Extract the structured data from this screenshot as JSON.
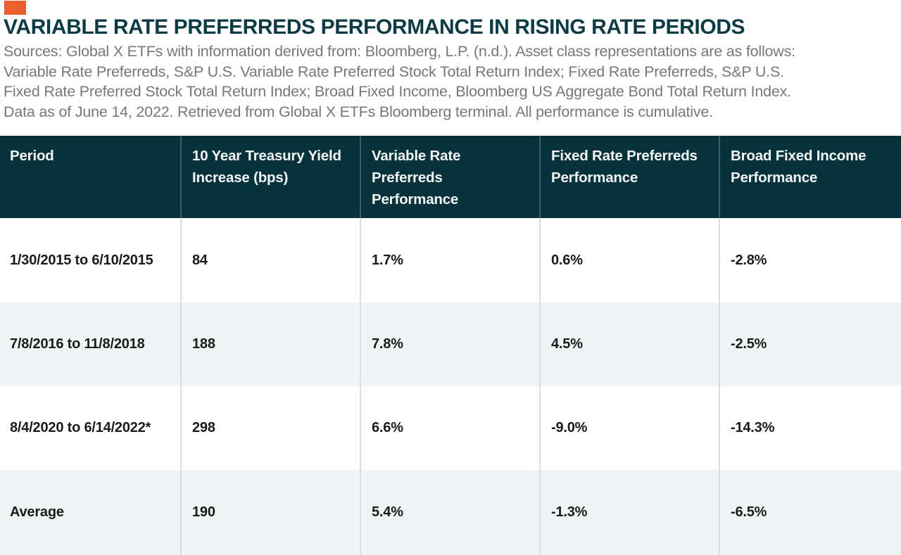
{
  "brand": {
    "mark": "orange-rectangle",
    "accent_color": "#E8602B"
  },
  "header": {
    "title": "VARIABLE RATE PREFERREDS PERFORMANCE IN RISING RATE PERIODS"
  },
  "source": {
    "lines": [
      "Sources: Global X ETFs with information derived from: Bloomberg, L.P. (n.d.). Asset class representations are as follows:",
      "Variable Rate Preferreds, S&P U.S. Variable Rate Preferred Stock Total Return Index; Fixed Rate Preferreds, S&P U.S.",
      "Fixed Rate Preferred Stock Total Return Index; Broad Fixed Income, Bloomberg US Aggregate Bond Total Return Index.",
      "Data as of June 14, 2022. Retrieved from Global X ETFs Bloomberg terminal. All performance is cumulative."
    ]
  },
  "chart_data": {
    "type": "table",
    "title": "VARIABLE RATE PREFERREDS PERFORMANCE IN RISING RATE PERIODS",
    "columns": [
      "Period",
      "10 Year Treasury Yield\nIncrease (bps)",
      "Variable Rate\nPreferreds Performance",
      "Fixed Rate Preferreds\nPerformance",
      "Broad Fixed Income\nPerformance"
    ],
    "rows": [
      [
        "1/30/2015 to 6/10/2015",
        "84",
        "1.7%",
        "0.6%",
        "-2.8%"
      ],
      [
        "7/8/2016 to 11/8/2018",
        "188",
        "7.8%",
        "4.5%",
        "-2.5%"
      ],
      [
        "8/4/2020 to 6/14/2022*",
        "298",
        "6.6%",
        "-9.0%",
        "-14.3%"
      ],
      [
        "Average",
        "190",
        "5.4%",
        "-1.3%",
        "-6.5%"
      ]
    ]
  },
  "colors": {
    "accent": "#E8602B",
    "title_text": "#0D3B45",
    "source_text": "#75787B",
    "header_background": "#07323B",
    "header_text": "#F3F6F6",
    "row_background": "#FFFFFF",
    "row_alt_background": "#F0F4F5",
    "body_text": "#1B1B1B",
    "divider": "#DADEDF"
  }
}
